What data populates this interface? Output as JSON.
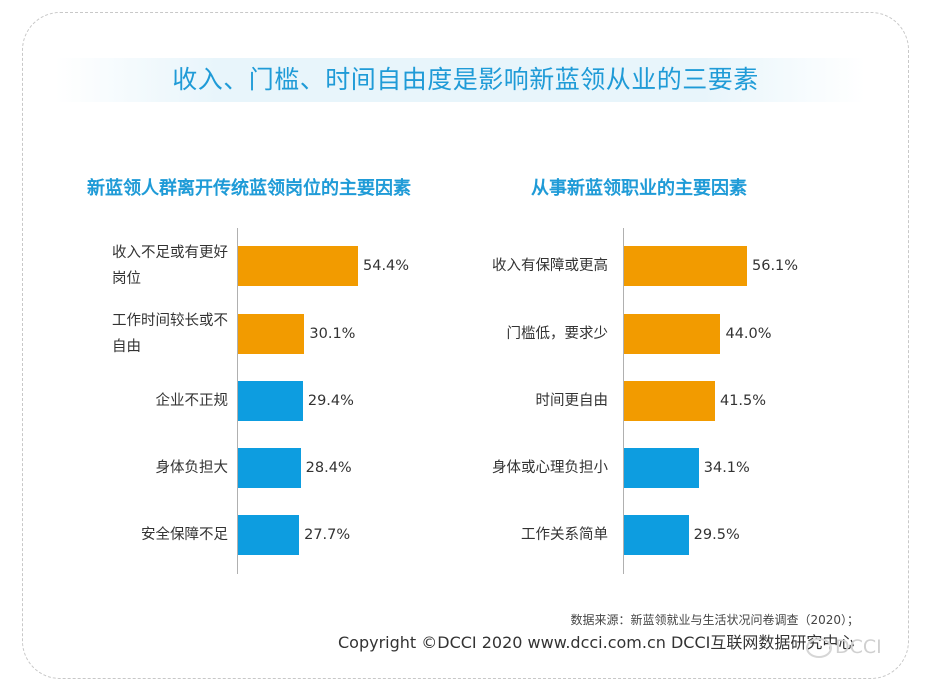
{
  "title": "收入、门槛、时间自由度是影响新蓝领从业的三要素",
  "chart_data": [
    {
      "type": "bar",
      "orientation": "horizontal",
      "title": "新蓝领人群离开传统蓝领岗位的主要因素",
      "categories": [
        "收入不足或有更好岗位",
        "工作时间较长或不自由",
        "企业不正规",
        "身体负担大",
        "安全保障不足"
      ],
      "category_lines": [
        [
          "收入不足或有更好",
          "岗位"
        ],
        [
          "工作时间较长或不",
          "自由"
        ],
        [
          "企业不正规"
        ],
        [
          "身体负担大"
        ],
        [
          "安全保障不足"
        ]
      ],
      "values": [
        54.4,
        30.1,
        29.4,
        28.4,
        27.7
      ],
      "labels": [
        "54.4%",
        "30.1%",
        "29.4%",
        "28.4%",
        "27.7%"
      ],
      "colors": [
        "#f29b00",
        "#f29b00",
        "#0d9de0",
        "#0d9de0",
        "#0d9de0"
      ],
      "unit": "%",
      "grid": false
    },
    {
      "type": "bar",
      "orientation": "horizontal",
      "title": "从事新蓝领职业的主要因素",
      "categories": [
        "收入有保障或更高",
        "门槛低，要求少",
        "时间更自由",
        "身体或心理负担小",
        "工作关系简单"
      ],
      "category_lines": [
        [
          "收入有保障或更高"
        ],
        [
          "门槛低，要求少"
        ],
        [
          "时间更自由"
        ],
        [
          "身体或心理负担小"
        ],
        [
          "工作关系简单"
        ]
      ],
      "values": [
        56.1,
        44.0,
        41.5,
        34.1,
        29.5
      ],
      "labels": [
        "56.1%",
        "44.0%",
        "41.5%",
        "34.1%",
        "29.5%"
      ],
      "colors": [
        "#f29b00",
        "#f29b00",
        "#f29b00",
        "#0d9de0",
        "#0d9de0"
      ],
      "unit": "%",
      "grid": false
    }
  ],
  "footer": {
    "source": "数据来源：新蓝领就业与生活状况问卷调查（2020）；",
    "copyright": "Copyright ©DCCI 2020  www.dcci.com.cn   DCCI互联网数据研究中心",
    "logo_text": "DCCI"
  }
}
